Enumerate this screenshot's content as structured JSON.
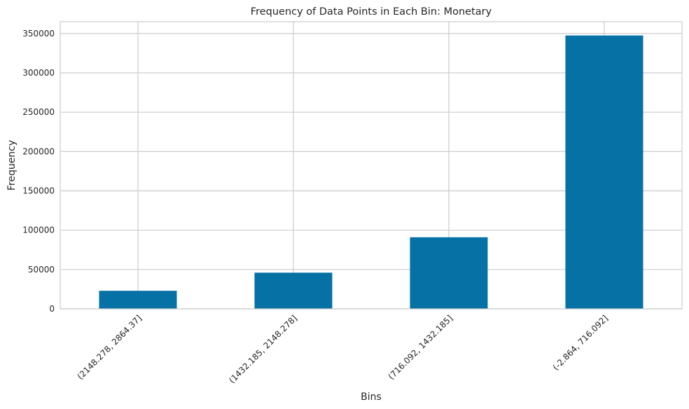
{
  "chart_data": {
    "type": "bar",
    "title": "Frequency of Data Points in Each Bin: Monetary",
    "xlabel": "Bins",
    "ylabel": "Frequency",
    "categories": [
      "(2148.278, 2864.37]",
      "(1432.185, 2148.278]",
      "(716.092, 1432.185]",
      "(-2.864, 716.092]"
    ],
    "values": [
      23000,
      46000,
      91000,
      347500
    ],
    "ylim": [
      0,
      365000
    ],
    "yticks": [
      0,
      50000,
      100000,
      150000,
      200000,
      250000,
      300000,
      350000
    ],
    "ytick_labels": [
      "0",
      "50000",
      "100000",
      "150000",
      "200000",
      "250000",
      "300000",
      "350000"
    ],
    "grid": true,
    "bar_color": "#0571a4",
    "grid_color": "#cccccc",
    "text_color": "#262626"
  }
}
